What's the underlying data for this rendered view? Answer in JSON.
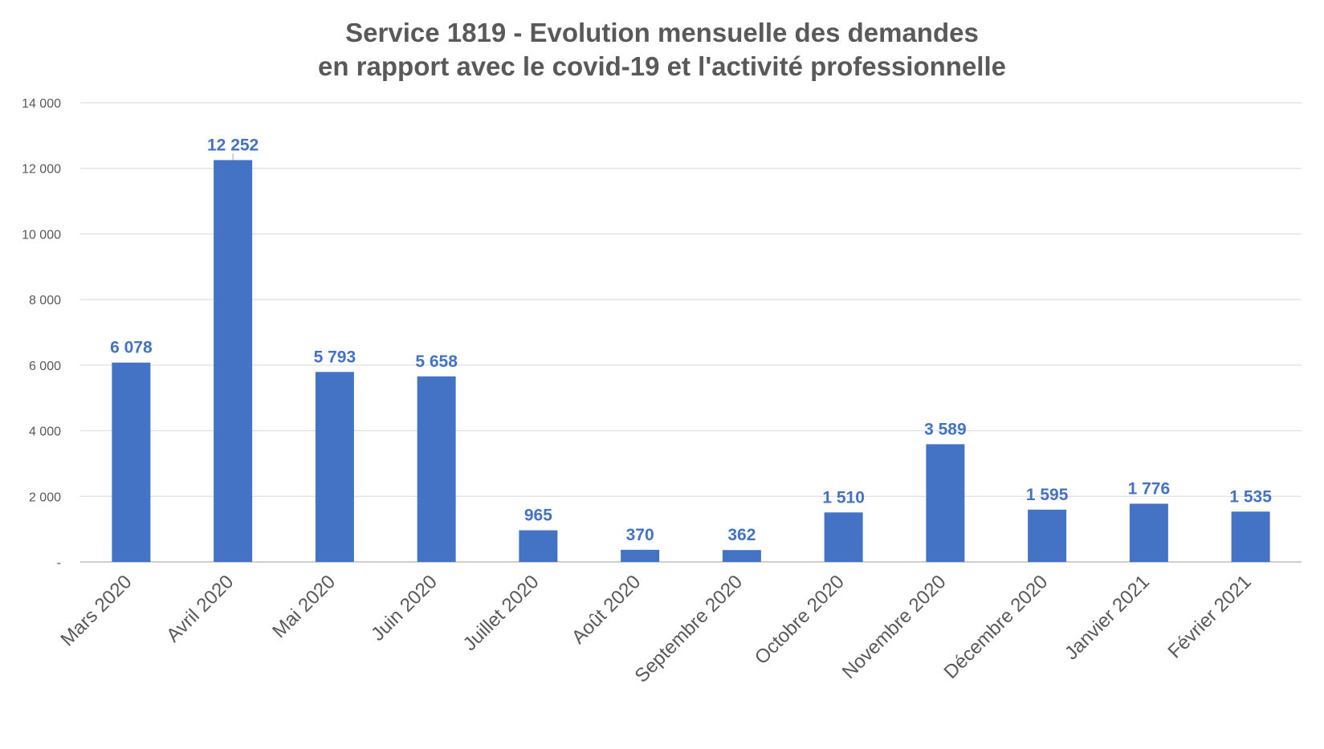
{
  "chart_data": {
    "type": "bar",
    "title_lines": [
      "Service 1819 - Evolution mensuelle des demandes",
      "en rapport avec le covid-19 et l'activité professionnelle"
    ],
    "categories": [
      "Mars 2020",
      "Avril 2020",
      "Mai 2020",
      "Juin 2020",
      "Juillet 2020",
      "Août 2020",
      "Septembre 2020",
      "Octobre 2020",
      "Novembre 2020",
      "Décembre 2020",
      "Janvier 2021",
      "Février 2021"
    ],
    "values": [
      6078,
      12252,
      5793,
      5658,
      965,
      370,
      362,
      1510,
      3589,
      1595,
      1776,
      1535
    ],
    "data_labels": [
      "6 078",
      "12 252",
      "5 793",
      "5 658",
      "965",
      "370",
      "362",
      "1 510",
      "3 589",
      "1 595",
      "1 776",
      "1 535"
    ],
    "y_ticks": [
      0,
      2000,
      4000,
      6000,
      8000,
      10000,
      12000,
      14000
    ],
    "y_tick_labels": [
      "-",
      "2 000",
      "4 000",
      "6 000",
      "8 000",
      "10 000",
      "12 000",
      "14 000"
    ],
    "ylim": [
      0,
      14000
    ],
    "grid": true,
    "legend": false,
    "bar_color": "#4472C4",
    "label_color": "#4472C4"
  }
}
